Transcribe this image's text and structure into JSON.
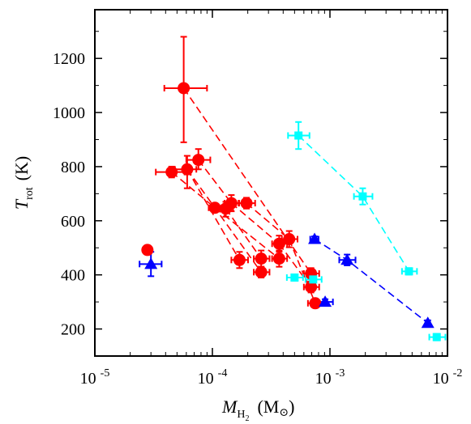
{
  "chart_data": {
    "type": "scatter",
    "title": "",
    "xscale": "log",
    "xlim": [
      1e-05,
      0.01
    ],
    "ylim": [
      100,
      1380
    ],
    "x_ticks": [
      1e-05,
      0.0001,
      0.001,
      0.01
    ],
    "x_tick_labels": [
      {
        "base": "10",
        "exp": "-5"
      },
      {
        "base": "10",
        "exp": "-4"
      },
      {
        "base": "10",
        "exp": "-3"
      },
      {
        "base": "10",
        "exp": "-2"
      }
    ],
    "y_ticks": [
      200,
      400,
      600,
      800,
      1000,
      1200
    ],
    "y_tick_labels": [
      "200",
      "400",
      "600",
      "800",
      "1000",
      "1200"
    ],
    "xlabel": {
      "main": "M",
      "sub": "H",
      "subsub": "2",
      "unit": "(M",
      "unit_sub": "⊙",
      "unit_close": ")"
    },
    "ylabel": {
      "main": "T",
      "sub": "rot",
      "unit": "(K)"
    },
    "grid": false,
    "legend": "none",
    "series": [
      {
        "color": "#ff0000",
        "marker": "circle",
        "points": [
          {
            "x": 5.7e-05,
            "y": 1090,
            "xerr": [
              1.8e-05,
              3.3e-05
            ],
            "yerr": [
              200,
              190
            ]
          },
          {
            "x": 4.5e-05,
            "y": 780,
            "xerr": [
              1.2e-05,
              1.3e-05
            ],
            "yerr": [
              20,
              20
            ]
          },
          {
            "x": 6.1e-05,
            "y": 790,
            "xerr": [
              1.3e-05,
              1.2e-05
            ],
            "yerr": [
              70,
              50
            ]
          },
          {
            "x": 7.6e-05,
            "y": 825,
            "xerr": [
              1.6e-05,
              2e-05
            ],
            "yerr": [
              35,
              40
            ]
          },
          {
            "x": 0.000105,
            "y": 648,
            "xerr": [
              1.2e-05,
              1.4e-05
            ],
            "yerr": [
              15,
              15
            ]
          },
          {
            "x": 0.00013,
            "y": 645,
            "xerr": [
              1.6e-05,
              2e-05
            ],
            "yerr": [
              30,
              25
            ]
          },
          {
            "x": 0.000145,
            "y": 665,
            "xerr": [
              1.8e-05,
              2.4e-05
            ],
            "yerr": [
              30,
              30
            ]
          },
          {
            "x": 0.000195,
            "y": 665,
            "xerr": [
              2.8e-05,
              3.6e-05
            ],
            "yerr": [
              20,
              20
            ]
          },
          {
            "x": 0.00017,
            "y": 455,
            "xerr": [
              2.5e-05,
              3.1e-05
            ],
            "yerr": [
              30,
              30
            ]
          },
          {
            "x": 0.00026,
            "y": 460,
            "xerr": [
              3.5e-05,
              4.6e-05
            ],
            "yerr": [
              30,
              30
            ]
          },
          {
            "x": 0.00026,
            "y": 410,
            "xerr": [
              3.5e-05,
              4.6e-05
            ],
            "yerr": [
              20,
              20
            ]
          },
          {
            "x": 0.00037,
            "y": 460,
            "xerr": [
              4.8e-05,
              6.2e-05
            ],
            "yerr": [
              30,
              30
            ]
          },
          {
            "x": 0.00037,
            "y": 515,
            "xerr": [
              4.8e-05,
              6.2e-05
            ],
            "yerr": [
              30,
              30
            ]
          },
          {
            "x": 0.00045,
            "y": 532,
            "xerr": [
              6e-05,
              8e-05
            ],
            "yerr": [
              30,
              30
            ]
          },
          {
            "x": 0.00069,
            "y": 405,
            "xerr": [
              9e-05,
              0.00012
            ],
            "yerr": [
              20,
              20
            ]
          },
          {
            "x": 0.00069,
            "y": 355,
            "xerr": [
              9e-05,
              0.00012
            ],
            "yerr": [
              20,
              20
            ]
          },
          {
            "x": 0.00075,
            "y": 295,
            "xerr": [
              0.0001,
              0.00013
            ],
            "yerr": [
              15,
              15
            ]
          },
          {
            "x": 2.8e-05,
            "y": 492,
            "xerr": [
              2e-06,
              2e-06
            ],
            "yerr": [
              10,
              10
            ]
          }
        ],
        "lines": [
          [
            [
              5.7e-05,
              1090
            ],
            [
              0.00069,
              405
            ]
          ],
          [
            [
              4.5e-05,
              780
            ],
            [
              0.000105,
              648
            ]
          ],
          [
            [
              6.1e-05,
              790
            ],
            [
              0.00017,
              455
            ]
          ],
          [
            [
              6.1e-05,
              790
            ],
            [
              0.00026,
              410
            ]
          ],
          [
            [
              7.6e-05,
              825
            ],
            [
              0.000145,
              665
            ]
          ],
          [
            [
              0.000105,
              648
            ],
            [
              0.00037,
              460
            ]
          ],
          [
            [
              0.00013,
              645
            ],
            [
              0.00026,
              460
            ]
          ],
          [
            [
              0.000145,
              665
            ],
            [
              0.00037,
              515
            ]
          ],
          [
            [
              0.000195,
              665
            ],
            [
              0.00045,
              532
            ]
          ],
          [
            [
              0.00037,
              515
            ],
            [
              0.00069,
              355
            ]
          ],
          [
            [
              0.00045,
              532
            ],
            [
              0.00075,
              295
            ]
          ]
        ]
      },
      {
        "color": "#00ffff",
        "marker": "square",
        "points": [
          {
            "x": 0.00054,
            "y": 915,
            "xerr": [
              0.0001,
              0.00013
            ],
            "yerr": [
              50,
              50
            ]
          },
          {
            "x": 0.0019,
            "y": 690,
            "xerr": [
              0.0003,
              0.0004
            ],
            "yerr": [
              30,
              30
            ]
          },
          {
            "x": 0.0047,
            "y": 413,
            "xerr": [
              0.0006,
              0.0008
            ],
            "yerr": [
              12,
              12
            ]
          },
          {
            "x": 0.0081,
            "y": 170,
            "xerr": [
              0.0011,
              0.0015
            ],
            "yerr": [
              12,
              12
            ]
          },
          {
            "x": 0.0005,
            "y": 390,
            "xerr": [
              7e-05,
              9e-05
            ],
            "yerr": [
              12,
              12
            ]
          },
          {
            "x": 0.00072,
            "y": 383,
            "xerr": [
              0.0001,
              0.00013
            ],
            "yerr": [
              12,
              12
            ]
          }
        ],
        "lines": [
          [
            [
              0.00054,
              915
            ],
            [
              0.0019,
              690
            ],
            [
              0.0047,
              413
            ]
          ]
        ]
      },
      {
        "color": "#0000ff",
        "marker": "triangle",
        "points": [
          {
            "x": 3e-05,
            "y": 440,
            "xerr": [
              6e-06,
              7e-06
            ],
            "yerr": [
              45,
              45
            ]
          },
          {
            "x": 0.00074,
            "y": 532,
            "xerr": [
              6e-05,
              6e-05
            ],
            "yerr": [
              10,
              10
            ]
          },
          {
            "x": 0.0014,
            "y": 455,
            "xerr": [
              0.0002,
              0.00025
            ],
            "yerr": [
              20,
              20
            ]
          },
          {
            "x": 0.00091,
            "y": 300,
            "xerr": [
              0.00012,
              0.00015
            ],
            "yerr": [
              10,
              10
            ]
          },
          {
            "x": 0.0068,
            "y": 222,
            "xerr": [
              0.0003,
              0.0003
            ],
            "yerr": [
              10,
              10
            ]
          }
        ],
        "lines": [
          [
            [
              0.00074,
              532
            ],
            [
              0.0014,
              455
            ],
            [
              0.0068,
              222
            ]
          ]
        ]
      }
    ]
  }
}
